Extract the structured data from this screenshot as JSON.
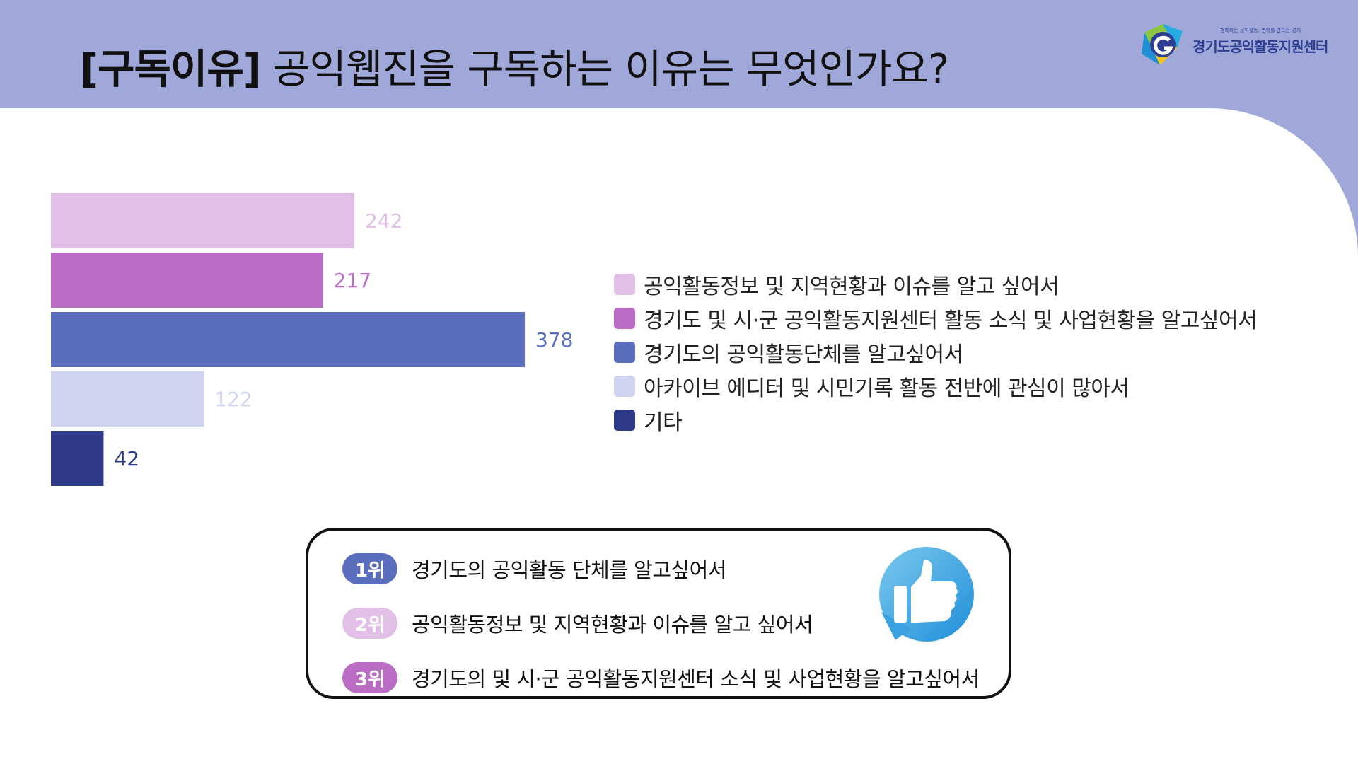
{
  "header": {
    "title_bracket": "[구독이유]",
    "title_text": "공익웹진을 구독하는 이유는 무엇인가요?"
  },
  "logo": {
    "tagline": "함께하는 공익활동, 변화를 만드는 경기",
    "name": "경기도공익활동지원센터"
  },
  "colors": {
    "header_bg": "#9fa8d9",
    "series": [
      "#e1bfe6",
      "#bb6dc6",
      "#5b6dbd",
      "#cfd3f0",
      "#2e3a87"
    ]
  },
  "chart_data": {
    "type": "bar",
    "orientation": "horizontal",
    "categories": [
      "공익활동정보 및 지역현황과 이슈를 알고 싶어서",
      "경기도 및 시·군 공익활동지원센터 활동 소식 및 사업현황을 알고싶어서",
      "경기도의 공익활동단체를 알고싶어서",
      "아카이브 에디터 및 시민기록 활동 전반에 관심이 많아서",
      "기타"
    ],
    "values": [
      242,
      217,
      378,
      122,
      42
    ],
    "value_labels": [
      "242",
      "217",
      "378",
      "122",
      "42"
    ],
    "colors": [
      "#e1bfe6",
      "#bb6dc6",
      "#5b6dbd",
      "#cfd3f0",
      "#2e3a87"
    ],
    "xlim": [
      0,
      378
    ],
    "grid": false,
    "axes_visible": false,
    "legend_position": "right"
  },
  "ranking": [
    {
      "badge": "1위",
      "text": "경기도의 공익활동 단체를 알고싶어서",
      "color": "#5b6dbd"
    },
    {
      "badge": "2위",
      "text": "공익활동정보 및 지역현황과 이슈를 알고 싶어서",
      "color": "#e1bfe6"
    },
    {
      "badge": "3위",
      "text": "경기도의 및 시·군 공익활동지원센터 소식 및 사업현황을 알고싶어서",
      "color": "#bb6dc6"
    }
  ]
}
